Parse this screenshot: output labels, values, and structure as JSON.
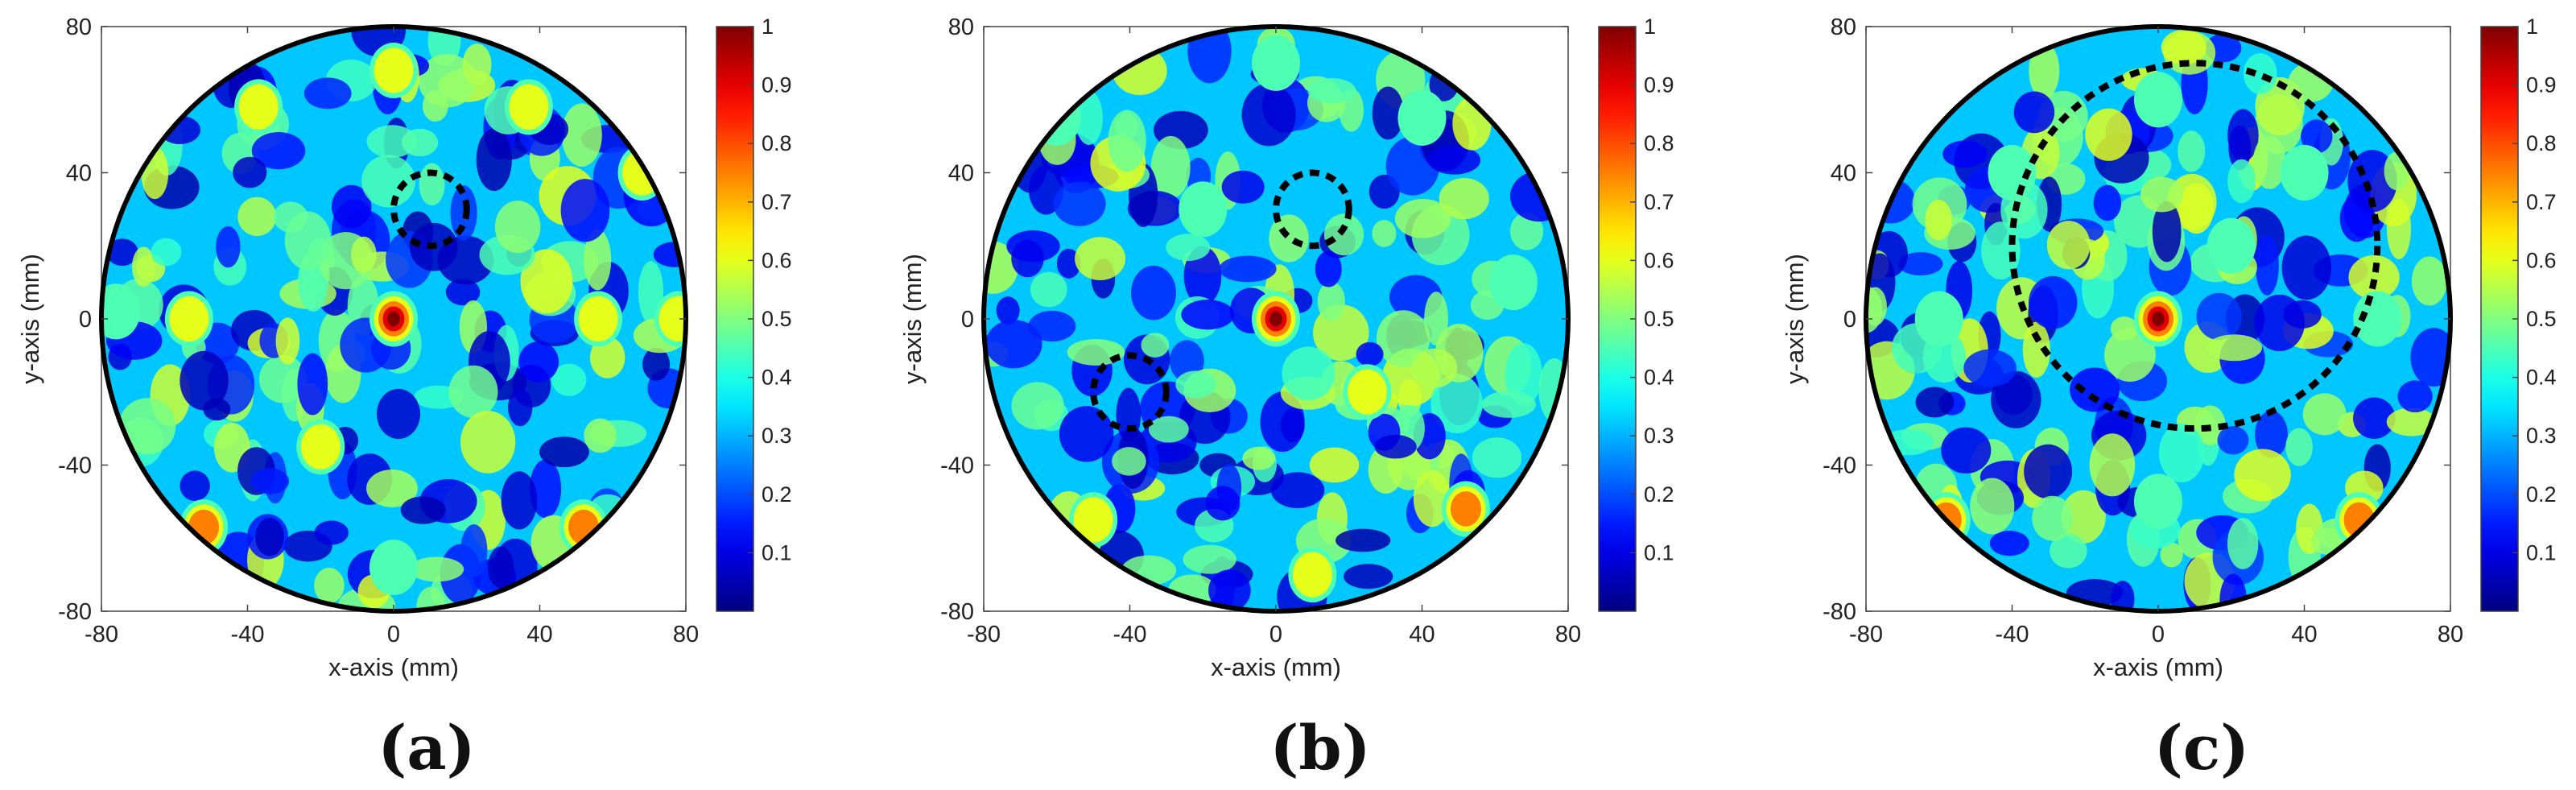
{
  "chart_data": [
    {
      "type": "heatmap",
      "panel_label": "(a)",
      "xlabel": "x-axis (mm)",
      "ylabel": "y-axis (mm)",
      "xlim": [
        -80,
        80
      ],
      "ylim": [
        -80,
        80
      ],
      "xticks": [
        "-80",
        "-40",
        "0",
        "40",
        "80"
      ],
      "yticks": [
        "80",
        "40",
        "0",
        "-40",
        "-80"
      ],
      "colorbar": {
        "min": 0,
        "max": 1,
        "ticks": [
          "1",
          "0.9",
          "0.8",
          "0.7",
          "0.6",
          "0.5",
          "0.4",
          "0.3",
          "0.2",
          "0.1"
        ],
        "colormap": "jet"
      },
      "domain_circle": {
        "cx": 0,
        "cy": 0,
        "r": 80
      },
      "dashed_circles": [
        {
          "cx": 10,
          "cy": 30,
          "r": 10
        }
      ],
      "peaks": [
        {
          "x": 0,
          "y": 0,
          "v": 1.0
        },
        {
          "x": -52,
          "y": -57,
          "v": 0.85
        },
        {
          "x": 52,
          "y": -57,
          "v": 0.8
        },
        {
          "x": 37,
          "y": 58,
          "v": 0.7
        },
        {
          "x": -37,
          "y": 58,
          "v": 0.62
        },
        {
          "x": 0,
          "y": 68,
          "v": 0.6
        },
        {
          "x": -56,
          "y": 0,
          "v": 0.6
        },
        {
          "x": 56,
          "y": 0,
          "v": 0.6
        },
        {
          "x": 78,
          "y": 0,
          "v": 0.7
        },
        {
          "x": 68,
          "y": 40,
          "v": 0.6
        },
        {
          "x": -20,
          "y": -35,
          "v": 0.62
        },
        {
          "x": 0,
          "y": -68,
          "v": 0.55
        },
        {
          "x": -76,
          "y": 2,
          "v": 0.55
        }
      ]
    },
    {
      "type": "heatmap",
      "panel_label": "(b)",
      "xlabel": "x-axis (mm)",
      "ylabel": "y-axis (mm)",
      "xlim": [
        -80,
        80
      ],
      "ylim": [
        -80,
        80
      ],
      "xticks": [
        "-80",
        "-40",
        "0",
        "40",
        "80"
      ],
      "yticks": [
        "80",
        "40",
        "0",
        "-40",
        "-80"
      ],
      "colorbar": {
        "min": 0,
        "max": 1,
        "ticks": [
          "1",
          "0.9",
          "0.8",
          "0.7",
          "0.6",
          "0.5",
          "0.4",
          "0.3",
          "0.2",
          "0.1"
        ],
        "colormap": "jet"
      },
      "domain_circle": {
        "cx": 0,
        "cy": 0,
        "r": 80
      },
      "dashed_circles": [
        {
          "cx": 10,
          "cy": 30,
          "r": 10
        },
        {
          "cx": -40,
          "cy": -20,
          "r": 10
        }
      ],
      "peaks": [
        {
          "x": 0,
          "y": 0,
          "v": 1.0
        },
        {
          "x": 52,
          "y": -52,
          "v": 0.82
        },
        {
          "x": -50,
          "y": -55,
          "v": 0.6
        },
        {
          "x": 25,
          "y": -20,
          "v": 0.6
        },
        {
          "x": 40,
          "y": 55,
          "v": 0.58
        },
        {
          "x": -60,
          "y": 55,
          "v": 0.58
        },
        {
          "x": 0,
          "y": 70,
          "v": 0.55
        },
        {
          "x": 65,
          "y": 10,
          "v": 0.55
        },
        {
          "x": -20,
          "y": 30,
          "v": 0.5
        },
        {
          "x": 10,
          "y": -70,
          "v": 0.6
        }
      ]
    },
    {
      "type": "heatmap",
      "panel_label": "(c)",
      "xlabel": "x-axis (mm)",
      "ylabel": "y-axis (mm)",
      "xlim": [
        -80,
        80
      ],
      "ylim": [
        -80,
        80
      ],
      "xticks": [
        "-80",
        "-40",
        "0",
        "40",
        "80"
      ],
      "yticks": [
        "80",
        "40",
        "0",
        "-40",
        "-80"
      ],
      "colorbar": {
        "min": 0,
        "max": 1,
        "ticks": [
          "1",
          "0.9",
          "0.8",
          "0.7",
          "0.6",
          "0.5",
          "0.4",
          "0.3",
          "0.2",
          "0.1"
        ],
        "colormap": "jet"
      },
      "domain_circle": {
        "cx": 0,
        "cy": 0,
        "r": 80
      },
      "dashed_circles": [
        {
          "cx": 10,
          "cy": 20,
          "r": 50
        }
      ],
      "peaks": [
        {
          "x": 0,
          "y": 0,
          "v": 1.0
        },
        {
          "x": -58,
          "y": -55,
          "v": 0.82
        },
        {
          "x": 55,
          "y": -55,
          "v": 0.82
        },
        {
          "x": 0,
          "y": 60,
          "v": 0.55
        },
        {
          "x": -40,
          "y": 40,
          "v": 0.55
        },
        {
          "x": 40,
          "y": 40,
          "v": 0.55
        },
        {
          "x": -60,
          "y": 0,
          "v": 0.55
        },
        {
          "x": 60,
          "y": 0,
          "v": 0.55
        },
        {
          "x": 0,
          "y": -50,
          "v": 0.55
        },
        {
          "x": 20,
          "y": 20,
          "v": 0.5
        }
      ]
    }
  ]
}
